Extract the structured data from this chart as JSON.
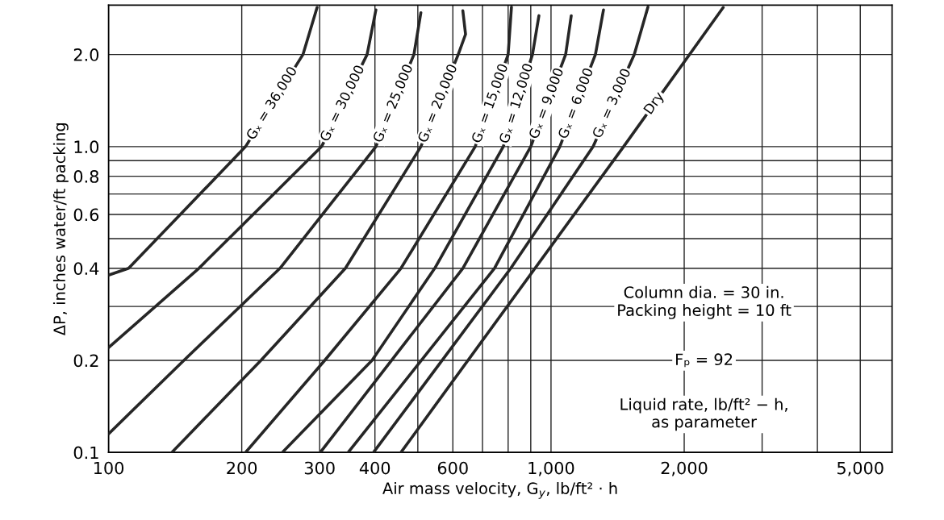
{
  "chart_data": {
    "type": "line",
    "xlabel": "Air mass velocity, G$_{y}$, lb/ft² · h",
    "ylabel": "ΔP, inches water/ft packing",
    "log": "xy",
    "grid": true,
    "legend": false,
    "xlim": [
      100,
      5900
    ],
    "ylim": [
      0.1,
      2.9
    ],
    "xticks": [
      100,
      200,
      300,
      400,
      {
        "value": 500,
        "label": null
      },
      600,
      {
        "value": 700,
        "label": null
      },
      {
        "value": 800,
        "label": null
      },
      {
        "value": 900,
        "label": null
      },
      {
        "value": 1000,
        "label": "1,000"
      },
      {
        "value": 2000,
        "label": "2,000"
      },
      {
        "value": 3000,
        "label": null
      },
      {
        "value": 4000,
        "label": null
      },
      {
        "value": 5000,
        "label": "5,000"
      }
    ],
    "yticks": [
      0.1,
      0.2,
      {
        "value": 0.3,
        "label": null
      },
      0.4,
      {
        "value": 0.5,
        "label": null
      },
      0.6,
      {
        "value": 0.7,
        "label": null
      },
      0.8,
      {
        "value": 0.9,
        "label": null
      },
      {
        "value": 1.0,
        "label": "1.0"
      },
      {
        "value": 2.0,
        "label": "2.0"
      }
    ],
    "series": [
      {
        "name": "Gₓ = 36,000",
        "color": "#262626",
        "x": [
          100,
          111,
          204,
          275,
          296
        ],
        "values": [
          0.38,
          0.4,
          1.0,
          2.0,
          2.85
        ]
      },
      {
        "name": "Gₓ = 30,000",
        "color": "#262626",
        "x": [
          100,
          160,
          303,
          384,
          402
        ],
        "values": [
          0.22,
          0.4,
          1.0,
          2.0,
          2.8
        ]
      },
      {
        "name": "Gₓ = 25,000",
        "color": "#262626",
        "x": [
          100,
          148,
          244,
          402,
          490,
          508
        ],
        "values": [
          0.115,
          0.2,
          0.4,
          1.0,
          2.0,
          2.74
        ]
      },
      {
        "name": "Gₓ = 20,000",
        "color": "#262626",
        "x": [
          139,
          221,
          343,
          508,
          617,
          641,
          632
        ],
        "values": [
          0.1,
          0.2,
          0.4,
          1.0,
          2.0,
          2.33,
          2.78
        ]
      },
      {
        "name": "Gₓ = 15,000",
        "color": "#262626",
        "x": [
          204,
          308,
          458,
          674,
          800,
          814
        ],
        "values": [
          0.1,
          0.2,
          0.4,
          1.0,
          2.0,
          2.86
        ]
      },
      {
        "name": "Gₓ = 12,000",
        "color": "#262626",
        "x": [
          247,
          394,
          546,
          780,
          908,
          939
        ],
        "values": [
          0.1,
          0.2,
          0.4,
          1.0,
          2.0,
          2.68
        ]
      },
      {
        "name": "Gₓ = 9,000",
        "color": "#262626",
        "x": [
          301,
          632,
          900,
          1079,
          1111
        ],
        "values": [
          0.1,
          0.4,
          1.0,
          2.0,
          2.68
        ]
      },
      {
        "name": "Gₓ = 6,000",
        "color": "#262626",
        "x": [
          348,
          745,
          1047,
          1260,
          1314
        ],
        "values": [
          0.1,
          0.4,
          1.0,
          2.0,
          2.8
        ]
      },
      {
        "name": "Gₓ = 3,000",
        "color": "#262626",
        "x": [
          397,
          811,
          1245,
          1542,
          1656
        ],
        "values": [
          0.1,
          0.4,
          1.0,
          2.0,
          2.86
        ]
      },
      {
        "name": "Dry",
        "color": "#262626",
        "x": [
          458,
          1459,
          2450
        ],
        "values": [
          0.1,
          1.0,
          2.85
        ]
      }
    ],
    "annotations": [
      "Column dia. = 30 in.",
      "Packing height = 10 ft",
      "Fₚ = 92",
      "Liquid rate, lb/ft² − h,\nas parameter"
    ]
  }
}
